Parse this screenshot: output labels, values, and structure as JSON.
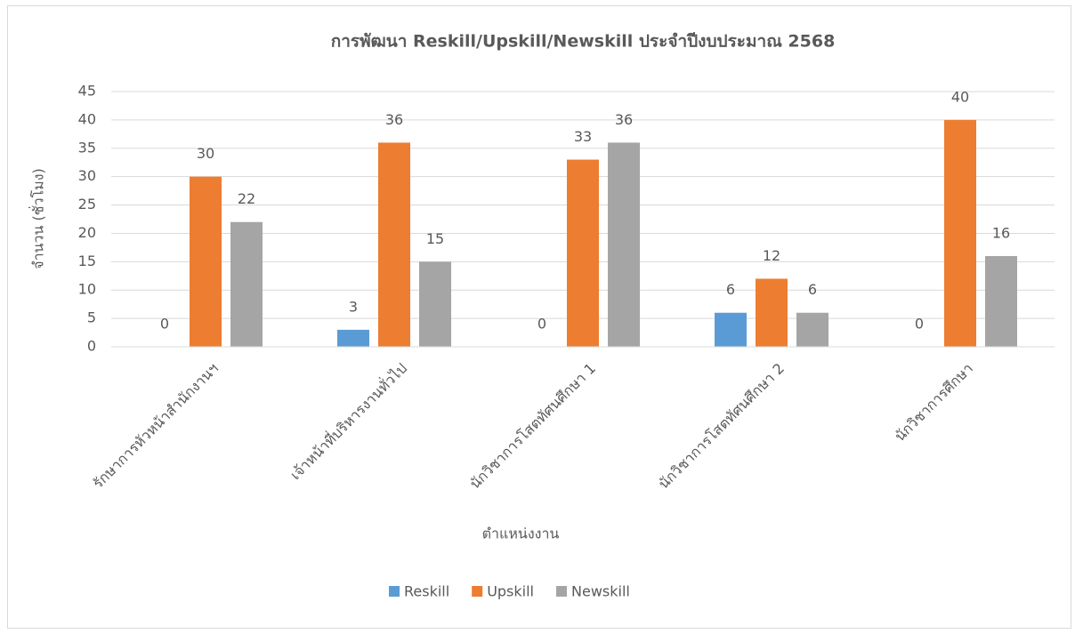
{
  "chart_data": {
    "type": "bar",
    "title": "การพัฒนา Reskill/Upskill/Newskill ประจำปีงบประมาณ 2568",
    "x_label": "ตำแหน่งงาน",
    "y_label": "จำนวน (ชั่วโมง)",
    "categories": [
      "รักษาการหัวหน้าสำนักงานฯ",
      "เจ้าหน้าที่บริหารงานทั่วไป",
      "นักวิชาการโสตทัศนศึกษา 1",
      "นักวิชาการโสตทัศนศึกษา 2",
      "นักวิชาการศึกษา"
    ],
    "series": [
      {
        "name": "Reskill",
        "color": "#5b9bd5",
        "values": [
          0,
          3,
          0,
          6,
          0
        ]
      },
      {
        "name": "Upskill",
        "color": "#ed7d31",
        "values": [
          30,
          36,
          33,
          12,
          40
        ]
      },
      {
        "name": "Newskill",
        "color": "#a5a5a5",
        "values": [
          22,
          15,
          36,
          6,
          16
        ]
      }
    ],
    "ylim": [
      0,
      45
    ],
    "yticks": [
      0,
      5,
      10,
      15,
      20,
      25,
      30,
      35,
      40,
      45
    ],
    "grid": true,
    "legend": "bottom"
  }
}
